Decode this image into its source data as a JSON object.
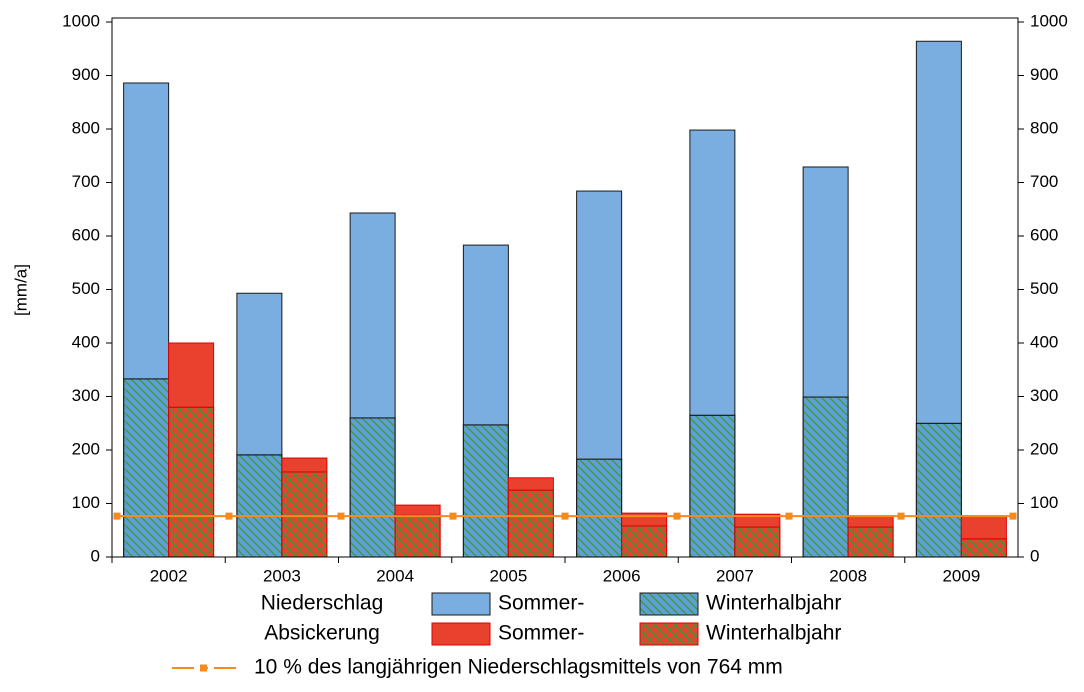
{
  "chart_data": {
    "type": "grouped_stacked_bar",
    "y_label": "[mm/a]",
    "categories": [
      "2002",
      "2003",
      "2004",
      "2005",
      "2006",
      "2007",
      "2008",
      "2009"
    ],
    "groups": [
      {
        "name": "Niederschlag",
        "series": [
          {
            "name": "Winterhalbjahr",
            "color": "#5f9fd4",
            "hatch": "diagonal",
            "hatch_color": "#3a9a3a",
            "values": [
              333,
              191,
              260,
              247,
              183,
              265,
              299,
              250
            ]
          },
          {
            "name": "Sommer-",
            "color": "#7aaee0",
            "values": [
              553,
              302,
              383,
              336,
              501,
              533,
              430,
              714
            ]
          }
        ]
      },
      {
        "name": "Absickerung",
        "series": [
          {
            "name": "Winterhalbjahr",
            "color": "#e8412e",
            "hatch": "cross",
            "hatch_color": "#3a9a3a",
            "values": [
              280,
              159,
              78,
              125,
              58,
              56,
              56,
              34
            ]
          },
          {
            "name": "Sommer-",
            "color": "#e8412e",
            "values": [
              120,
              26,
              19,
              23,
              24,
              24,
              21,
              43
            ]
          }
        ]
      }
    ],
    "reference_line": {
      "value": 76.4,
      "label": "10 % des langjährigen Niederschlagsmittels von 764 mm",
      "color": "#f58a1f"
    },
    "ylim": [
      0,
      1000
    ],
    "yticks": [
      0,
      100,
      200,
      300,
      400,
      500,
      600,
      700,
      800,
      900,
      1000
    ],
    "y2lim": [
      0,
      1000
    ],
    "y2ticks": [
      0,
      100,
      200,
      300,
      400,
      500,
      600,
      700,
      800,
      900,
      1000
    ]
  }
}
